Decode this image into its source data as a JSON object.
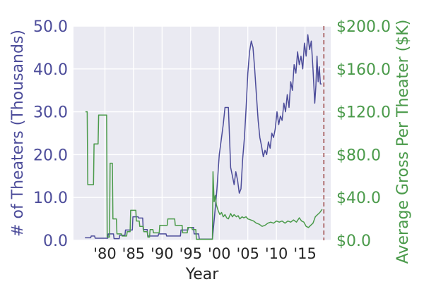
{
  "chart_data": {
    "type": "line",
    "title": "",
    "xlabel": "Year",
    "ylabel_left": "# of Theaters (Thousands)",
    "ylabel_right": "Average Gross Per Theater ($K)",
    "xlim": [
      1974.5,
      2019.5
    ],
    "ylim_left": [
      0,
      50
    ],
    "ylim_right": [
      0,
      200
    ],
    "x_ticks": [
      {
        "value": 1980,
        "label": "'80"
      },
      {
        "value": 1985,
        "label": "'85"
      },
      {
        "value": 1990,
        "label": "'90"
      },
      {
        "value": 1995,
        "label": "'95"
      },
      {
        "value": 2000,
        "label": "'00"
      },
      {
        "value": 2005,
        "label": "'05"
      },
      {
        "value": 2010,
        "label": "'10"
      },
      {
        "value": 2015,
        "label": "'15"
      }
    ],
    "y_left_ticks": [
      {
        "value": 0,
        "label": "0.0"
      },
      {
        "value": 10,
        "label": "10.0"
      },
      {
        "value": 20,
        "label": "20.0"
      },
      {
        "value": 30,
        "label": "30.0"
      },
      {
        "value": 40,
        "label": "40.0"
      },
      {
        "value": 50,
        "label": "50.0"
      }
    ],
    "y_right_ticks": [
      {
        "value": 0,
        "label": "$0.0"
      },
      {
        "value": 40,
        "label": "$40.0"
      },
      {
        "value": 80,
        "label": "$80.0"
      },
      {
        "value": 120,
        "label": "$120.0"
      },
      {
        "value": 160,
        "label": "$160.0"
      },
      {
        "value": 200,
        "label": "$200.0"
      }
    ],
    "vline_x": 2018.3,
    "grid": true,
    "colors": {
      "left": "#4c4c9a",
      "right": "#4a9a4a",
      "vline": "#a05050",
      "background": "#eaeaf2",
      "grid": "#ffffff",
      "text": "#262626"
    },
    "series": [
      {
        "axis": "left",
        "values": [
          [
            1976.5,
            0.6
          ],
          [
            1977.5,
            0.6
          ],
          [
            1977.6,
            1.0
          ],
          [
            1978.2,
            1.0
          ],
          [
            1978.3,
            0.5
          ],
          [
            1980.5,
            0.5
          ],
          [
            1980.6,
            1.5
          ],
          [
            1981.5,
            1.5
          ],
          [
            1981.6,
            0.4
          ],
          [
            1982.5,
            0.4
          ],
          [
            1982.6,
            1.2
          ],
          [
            1983.5,
            1.2
          ],
          [
            1983.6,
            2.4
          ],
          [
            1984.8,
            2.4
          ],
          [
            1984.9,
            5.5
          ],
          [
            1985.8,
            5.5
          ],
          [
            1985.9,
            5.2
          ],
          [
            1986.6,
            5.2
          ],
          [
            1986.7,
            2.5
          ],
          [
            1987.4,
            2.5
          ],
          [
            1987.5,
            1.0
          ],
          [
            1989.3,
            1.0
          ],
          [
            1989.4,
            1.5
          ],
          [
            1990.7,
            1.5
          ],
          [
            1990.8,
            1.0
          ],
          [
            1993.2,
            1.0
          ],
          [
            1993.3,
            2.4
          ],
          [
            1994.5,
            2.4
          ],
          [
            1994.6,
            3.0
          ],
          [
            1995.5,
            3.0
          ],
          [
            1995.6,
            1.5
          ],
          [
            1996.4,
            1.5
          ],
          [
            1996.5,
            0.3
          ],
          [
            1998.8,
            0.3
          ],
          [
            1999.2,
            6.0
          ],
          [
            1999.6,
            12.0
          ],
          [
            2000.0,
            20.0
          ],
          [
            2000.4,
            24.0
          ],
          [
            2000.7,
            27.0
          ],
          [
            2001.0,
            31.0
          ],
          [
            2001.6,
            31.0
          ],
          [
            2001.8,
            24.0
          ],
          [
            2002.0,
            17.0
          ],
          [
            2002.3,
            15.0
          ],
          [
            2002.6,
            13.0
          ],
          [
            2002.9,
            16.0
          ],
          [
            2003.2,
            14.0
          ],
          [
            2003.5,
            11.0
          ],
          [
            2003.8,
            12.0
          ],
          [
            2004.1,
            19.0
          ],
          [
            2004.4,
            24.0
          ],
          [
            2004.7,
            31.0
          ],
          [
            2005.0,
            39.0
          ],
          [
            2005.3,
            44.0
          ],
          [
            2005.6,
            46.5
          ],
          [
            2005.9,
            45.0
          ],
          [
            2006.2,
            40.0
          ],
          [
            2006.5,
            34.0
          ],
          [
            2006.8,
            28.0
          ],
          [
            2007.1,
            24.0
          ],
          [
            2007.4,
            22.0
          ],
          [
            2007.7,
            19.5
          ],
          [
            2008.0,
            21.0
          ],
          [
            2008.3,
            20.0
          ],
          [
            2008.6,
            23.0
          ],
          [
            2008.9,
            21.5
          ],
          [
            2009.2,
            25.0
          ],
          [
            2009.5,
            24.0
          ],
          [
            2009.8,
            26.0
          ],
          [
            2010.1,
            30.0
          ],
          [
            2010.4,
            27.0
          ],
          [
            2010.7,
            29.0
          ],
          [
            2011.0,
            28.0
          ],
          [
            2011.3,
            32.0
          ],
          [
            2011.6,
            30.0
          ],
          [
            2011.9,
            34.0
          ],
          [
            2012.2,
            31.0
          ],
          [
            2012.5,
            37.0
          ],
          [
            2012.8,
            35.0
          ],
          [
            2013.1,
            41.0
          ],
          [
            2013.4,
            39.0
          ],
          [
            2013.7,
            44.0
          ],
          [
            2014.0,
            41.0
          ],
          [
            2014.3,
            43.0
          ],
          [
            2014.6,
            40.0
          ],
          [
            2014.9,
            46.0
          ],
          [
            2015.2,
            43.0
          ],
          [
            2015.5,
            48.0
          ],
          [
            2015.8,
            44.5
          ],
          [
            2016.1,
            46.5
          ],
          [
            2016.4,
            40.0
          ],
          [
            2016.7,
            32.0
          ],
          [
            2016.9,
            36.0
          ],
          [
            2017.1,
            43.0
          ],
          [
            2017.3,
            37.0
          ],
          [
            2017.5,
            40.5
          ],
          [
            2017.7,
            36.5
          ],
          [
            2017.9,
            36.5
          ]
        ]
      },
      {
        "axis": "right",
        "values": [
          [
            1976.6,
            120.0
          ],
          [
            1976.9,
            120.0
          ],
          [
            1977.0,
            52.0
          ],
          [
            1978.0,
            52.0
          ],
          [
            1978.1,
            90.0
          ],
          [
            1978.8,
            90.0
          ],
          [
            1978.9,
            117.0
          ],
          [
            1980.3,
            117.0
          ],
          [
            1980.4,
            3.0
          ],
          [
            1980.8,
            3.0
          ],
          [
            1980.9,
            72.0
          ],
          [
            1981.3,
            72.0
          ],
          [
            1981.4,
            20.0
          ],
          [
            1982.0,
            20.0
          ],
          [
            1982.1,
            6.0
          ],
          [
            1982.9,
            6.0
          ],
          [
            1983.0,
            4.0
          ],
          [
            1983.8,
            4.0
          ],
          [
            1983.9,
            8.0
          ],
          [
            1984.4,
            8.0
          ],
          [
            1984.5,
            28.0
          ],
          [
            1985.4,
            28.0
          ],
          [
            1985.5,
            18.0
          ],
          [
            1986.0,
            18.0
          ],
          [
            1986.1,
            13.0
          ],
          [
            1986.7,
            13.0
          ],
          [
            1986.8,
            8.0
          ],
          [
            1987.4,
            8.0
          ],
          [
            1987.5,
            3.0
          ],
          [
            1987.8,
            3.0
          ],
          [
            1987.9,
            10.0
          ],
          [
            1988.4,
            10.0
          ],
          [
            1988.5,
            7.0
          ],
          [
            1989.5,
            7.0
          ],
          [
            1989.6,
            14.0
          ],
          [
            1990.9,
            14.0
          ],
          [
            1991.0,
            20.0
          ],
          [
            1992.2,
            20.0
          ],
          [
            1992.3,
            14.0
          ],
          [
            1993.5,
            14.0
          ],
          [
            1993.6,
            7.0
          ],
          [
            1994.4,
            7.0
          ],
          [
            1994.5,
            12.0
          ],
          [
            1995.2,
            12.0
          ],
          [
            1995.3,
            10.0
          ],
          [
            1995.9,
            10.0
          ],
          [
            1996.0,
            1.0
          ],
          [
            1998.8,
            1.0
          ],
          [
            1998.9,
            64.0
          ],
          [
            1999.1,
            36.0
          ],
          [
            1999.3,
            42.0
          ],
          [
            1999.5,
            33.0
          ],
          [
            1999.8,
            28.0
          ],
          [
            2000.1,
            24.0
          ],
          [
            2000.4,
            26.0
          ],
          [
            2000.7,
            22.0
          ],
          [
            2001.0,
            24.0
          ],
          [
            2001.3,
            21.0
          ],
          [
            2001.6,
            20.0
          ],
          [
            2002.0,
            25.0
          ],
          [
            2002.3,
            22.0
          ],
          [
            2002.6,
            24.0
          ],
          [
            2003.0,
            22.0
          ],
          [
            2003.3,
            23.0
          ],
          [
            2003.6,
            20.0
          ],
          [
            2004.0,
            22.0
          ],
          [
            2004.3,
            21.0
          ],
          [
            2004.7,
            22.0
          ],
          [
            2005.0,
            20.0
          ],
          [
            2005.5,
            19.0
          ],
          [
            2006.0,
            18.0
          ],
          [
            2006.5,
            16.0
          ],
          [
            2007.0,
            15.0
          ],
          [
            2007.5,
            13.0
          ],
          [
            2008.0,
            14.0
          ],
          [
            2008.5,
            16.0
          ],
          [
            2009.0,
            17.0
          ],
          [
            2009.5,
            16.0
          ],
          [
            2010.0,
            18.0
          ],
          [
            2010.5,
            17.0
          ],
          [
            2011.0,
            18.0
          ],
          [
            2011.5,
            16.0
          ],
          [
            2012.0,
            18.0
          ],
          [
            2012.5,
            17.0
          ],
          [
            2013.0,
            19.0
          ],
          [
            2013.5,
            17.0
          ],
          [
            2014.0,
            21.0
          ],
          [
            2014.4,
            18.0
          ],
          [
            2014.8,
            17.0
          ],
          [
            2015.2,
            13.0
          ],
          [
            2015.6,
            12.0
          ],
          [
            2016.0,
            14.0
          ],
          [
            2016.4,
            16.0
          ],
          [
            2016.8,
            22.0
          ],
          [
            2017.2,
            24.0
          ],
          [
            2017.6,
            26.0
          ],
          [
            2018.0,
            29.0
          ]
        ]
      }
    ]
  }
}
